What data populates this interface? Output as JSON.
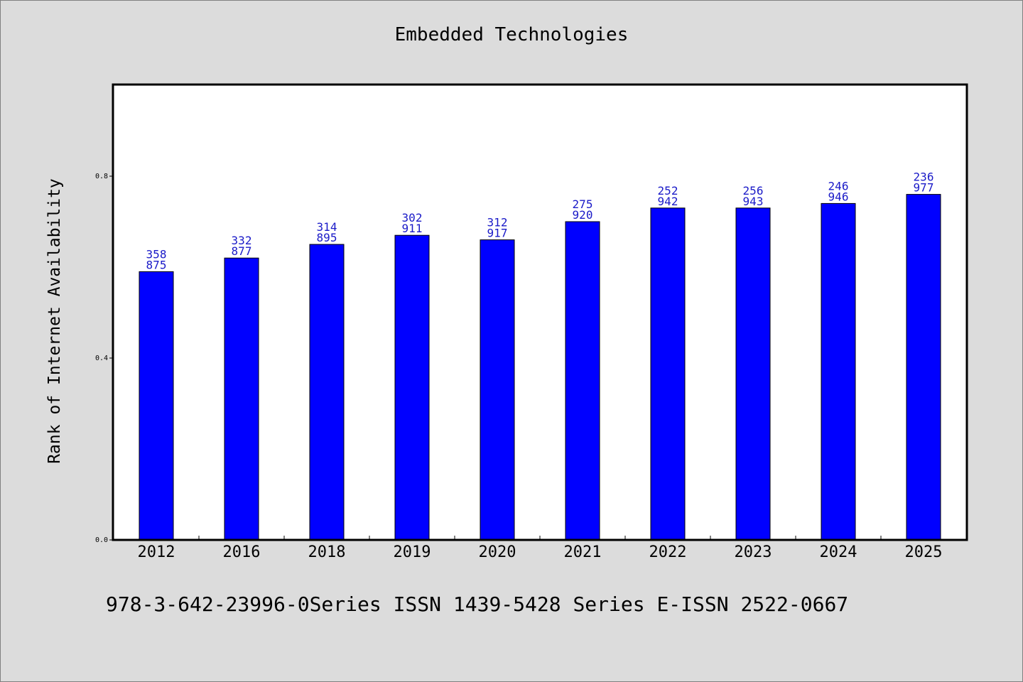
{
  "chart_data": {
    "type": "bar",
    "title": "Embedded Technologies",
    "ylabel": "Rank of Internet Availability",
    "xlabel": "",
    "categories": [
      "2012",
      "2016",
      "2018",
      "2019",
      "2020",
      "2021",
      "2022",
      "2023",
      "2024",
      "2025"
    ],
    "values": [
      0.59,
      0.62,
      0.65,
      0.67,
      0.66,
      0.7,
      0.73,
      0.73,
      0.74,
      0.76
    ],
    "data_labels": [
      [
        "358",
        "875"
      ],
      [
        "332",
        "877"
      ],
      [
        "314",
        "895"
      ],
      [
        "302",
        "911"
      ],
      [
        "312",
        "917"
      ],
      [
        "275",
        "920"
      ],
      [
        "252",
        "942"
      ],
      [
        "256",
        "943"
      ],
      [
        "246",
        "946"
      ],
      [
        "236",
        "977"
      ]
    ],
    "ylim": [
      0,
      1.0
    ],
    "yticks": [
      0.0,
      0.4,
      0.8
    ],
    "ytick_labels": [
      "0.0",
      "0.4",
      "0.8"
    ],
    "grid": false,
    "colors": {
      "bar": "#0000ff",
      "label": "#1a1ac8",
      "background": "#dcdcdc",
      "plot_background": "#ffffff"
    }
  },
  "footer": {
    "text": "978-3-642-23996-0Series ISSN 1439-5428 Series E-ISSN 2522-0667"
  }
}
